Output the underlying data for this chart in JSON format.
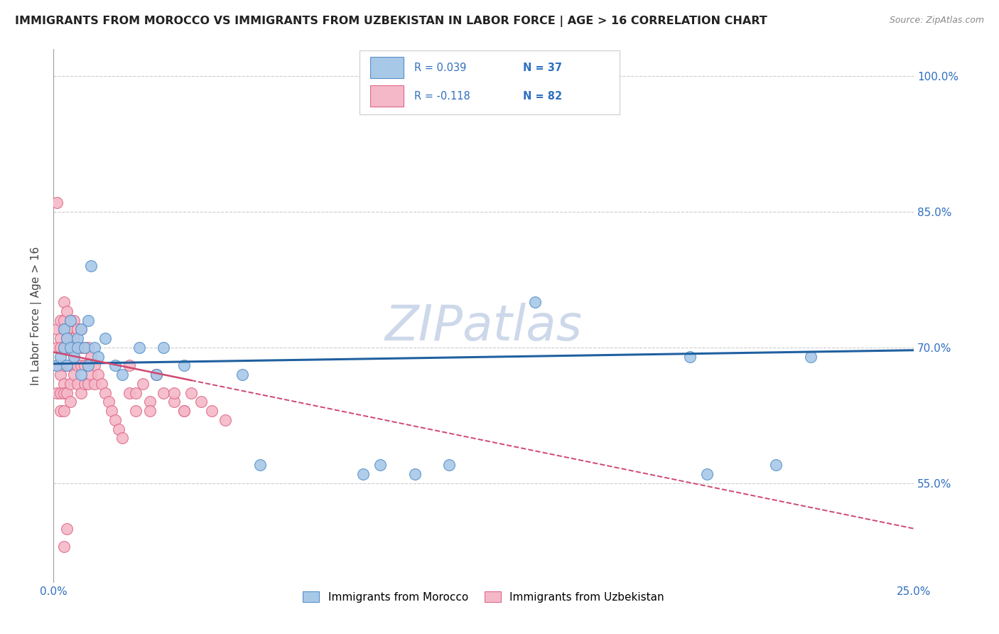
{
  "title": "IMMIGRANTS FROM MOROCCO VS IMMIGRANTS FROM UZBEKISTAN IN LABOR FORCE | AGE > 16 CORRELATION CHART",
  "source": "Source: ZipAtlas.com",
  "ylabel": "In Labor Force | Age > 16",
  "xlim": [
    0.0,
    0.25
  ],
  "ylim": [
    0.44,
    1.03
  ],
  "yticks": [
    0.55,
    0.7,
    0.85,
    1.0
  ],
  "ytick_labels": [
    "55.0%",
    "70.0%",
    "85.0%",
    "100.0%"
  ],
  "xticks": [
    0.0,
    0.05,
    0.1,
    0.15,
    0.2,
    0.25
  ],
  "xtick_labels": [
    "0.0%",
    "",
    "",
    "",
    "",
    "25.0%"
  ],
  "morocco_color": "#a8c8e8",
  "uzbekistan_color": "#f4b8c8",
  "morocco_edge": "#5590c8",
  "uzbekistan_edge": "#e06888",
  "morocco_line_color": "#2060a0",
  "uzbekistan_line_color": "#d04870",
  "accent_blue": "#3070c0",
  "watermark": "ZIPatlas",
  "watermark_color": "#cdd8ea",
  "legend_morocco": "Immigrants from Morocco",
  "legend_uzbekistan": "Immigrants from Uzbekistan",
  "morocco_x": [
    0.001,
    0.002,
    0.003,
    0.003,
    0.004,
    0.004,
    0.005,
    0.005,
    0.006,
    0.007,
    0.007,
    0.008,
    0.008,
    0.009,
    0.01,
    0.01,
    0.011,
    0.012,
    0.013,
    0.015,
    0.018,
    0.02,
    0.025,
    0.03,
    0.032,
    0.038,
    0.055,
    0.06,
    0.09,
    0.095,
    0.105,
    0.115,
    0.14,
    0.185,
    0.19,
    0.21,
    0.22
  ],
  "morocco_y": [
    0.68,
    0.69,
    0.72,
    0.7,
    0.71,
    0.68,
    0.7,
    0.73,
    0.69,
    0.71,
    0.7,
    0.72,
    0.67,
    0.7,
    0.68,
    0.73,
    0.79,
    0.7,
    0.69,
    0.71,
    0.68,
    0.67,
    0.7,
    0.67,
    0.7,
    0.68,
    0.67,
    0.57,
    0.56,
    0.57,
    0.56,
    0.57,
    0.75,
    0.69,
    0.56,
    0.57,
    0.69
  ],
  "uzbekistan_x": [
    0.001,
    0.001,
    0.001,
    0.001,
    0.001,
    0.002,
    0.002,
    0.002,
    0.002,
    0.002,
    0.002,
    0.002,
    0.003,
    0.003,
    0.003,
    0.003,
    0.003,
    0.003,
    0.003,
    0.003,
    0.004,
    0.004,
    0.004,
    0.004,
    0.004,
    0.004,
    0.005,
    0.005,
    0.005,
    0.005,
    0.005,
    0.005,
    0.006,
    0.006,
    0.006,
    0.006,
    0.007,
    0.007,
    0.007,
    0.007,
    0.008,
    0.008,
    0.008,
    0.008,
    0.009,
    0.009,
    0.009,
    0.01,
    0.01,
    0.01,
    0.011,
    0.011,
    0.012,
    0.012,
    0.013,
    0.014,
    0.015,
    0.016,
    0.017,
    0.018,
    0.019,
    0.02,
    0.022,
    0.024,
    0.026,
    0.028,
    0.03,
    0.032,
    0.035,
    0.038,
    0.04,
    0.043,
    0.046,
    0.05,
    0.022,
    0.024,
    0.028,
    0.03,
    0.035,
    0.038,
    0.003,
    0.004
  ],
  "uzbekistan_y": [
    0.86,
    0.72,
    0.7,
    0.68,
    0.65,
    0.73,
    0.71,
    0.7,
    0.68,
    0.67,
    0.65,
    0.63,
    0.75,
    0.73,
    0.72,
    0.7,
    0.68,
    0.66,
    0.65,
    0.63,
    0.74,
    0.72,
    0.71,
    0.7,
    0.68,
    0.65,
    0.73,
    0.71,
    0.7,
    0.68,
    0.66,
    0.64,
    0.73,
    0.71,
    0.69,
    0.67,
    0.72,
    0.7,
    0.68,
    0.66,
    0.72,
    0.7,
    0.68,
    0.65,
    0.7,
    0.68,
    0.66,
    0.7,
    0.68,
    0.66,
    0.69,
    0.67,
    0.68,
    0.66,
    0.67,
    0.66,
    0.65,
    0.64,
    0.63,
    0.62,
    0.61,
    0.6,
    0.65,
    0.63,
    0.66,
    0.64,
    0.67,
    0.65,
    0.64,
    0.63,
    0.65,
    0.64,
    0.63,
    0.62,
    0.68,
    0.65,
    0.63,
    0.67,
    0.65,
    0.63,
    0.48,
    0.5
  ]
}
